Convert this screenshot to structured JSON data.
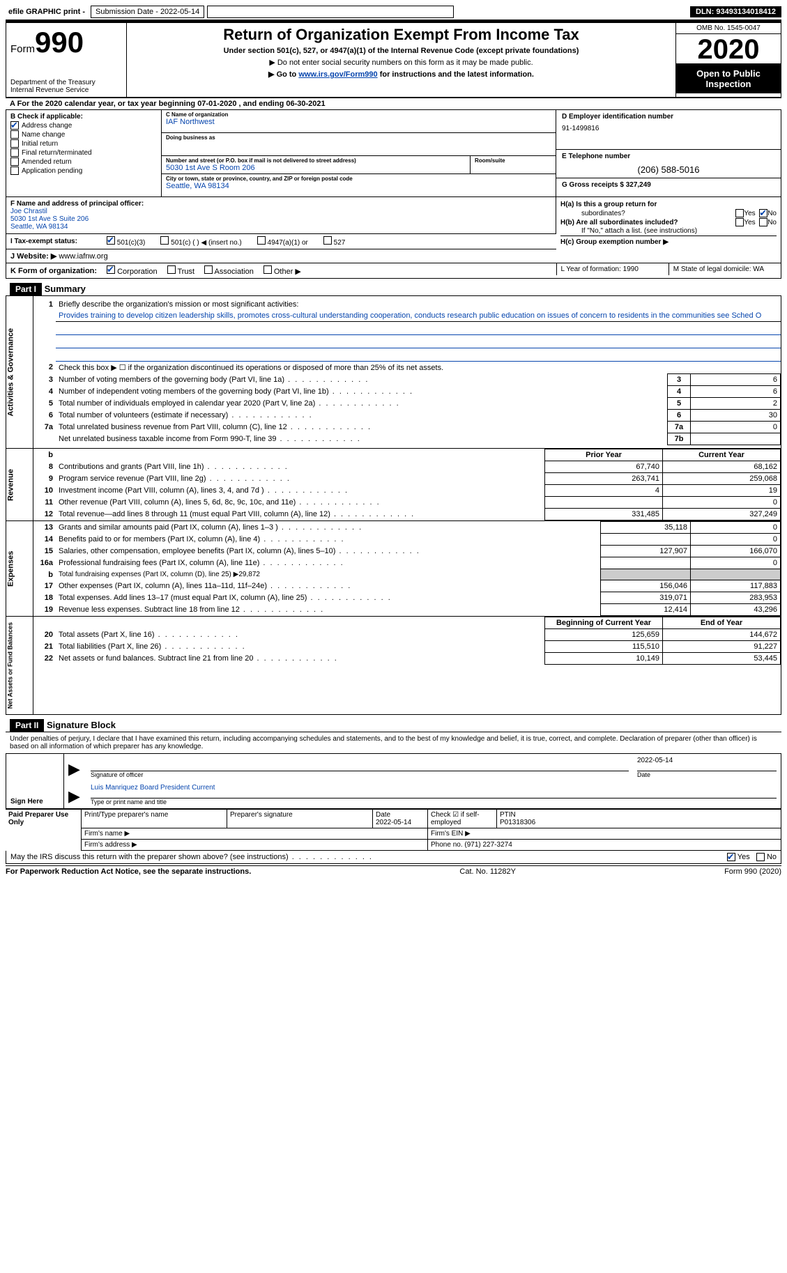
{
  "topbar": {
    "efile": "efile GRAPHIC print -",
    "submission_label": "Submission Date - 2022-05-14",
    "dln": "DLN: 93493134018412"
  },
  "header": {
    "form_word": "Form",
    "form_num": "990",
    "dept": "Department of the Treasury\nInternal Revenue Service",
    "title": "Return of Organization Exempt From Income Tax",
    "sub": "Under section 501(c), 527, or 4947(a)(1) of the Internal Revenue Code (except private foundations)",
    "line2": "▶ Do not enter social security numbers on this form as it may be made public.",
    "line3_pre": "▶ Go to ",
    "line3_link": "www.irs.gov/Form990",
    "line3_post": " for instructions and the latest information.",
    "omb": "OMB No. 1545-0047",
    "year": "2020",
    "open_public": "Open to Public Inspection"
  },
  "a_line": "A For the 2020 calendar year, or tax year beginning 07-01-2020   , and ending 06-30-2021",
  "col_b": {
    "title": "B Check if applicable:",
    "items": [
      "Address change",
      "Name change",
      "Initial return",
      "Final return/terminated",
      "Amended return",
      "Application pending"
    ],
    "checked_idx": 0
  },
  "col_c": {
    "name_lbl": "C Name of organization",
    "name": "IAF Northwest",
    "dba_lbl": "Doing business as",
    "addr_lbl": "Number and street (or P.O. box if mail is not delivered to street address)",
    "addr": "5030 1st Ave S Room 206",
    "room_lbl": "Room/suite",
    "city_lbl": "City or town, state or province, country, and ZIP or foreign postal code",
    "city": "Seattle, WA  98134"
  },
  "col_d": {
    "ein_lbl": "D Employer identification number",
    "ein": "91-1499816",
    "tel_lbl": "E Telephone number",
    "tel": "(206) 588-5016",
    "gross_lbl": "G Gross receipts $ 327,249"
  },
  "f": {
    "lbl": "F Name and address of principal officer:",
    "name": "Joe Chrastil",
    "addr1": "5030 1st Ave S Suite 206",
    "addr2": "Seattle, WA  98134"
  },
  "h": {
    "a_lbl": "H(a)  Is this a group return for",
    "a_sub": "subordinates?",
    "b_lbl": "H(b)  Are all subordinates included?",
    "b_note": "If \"No,\" attach a list. (see instructions)",
    "c_lbl": "H(c)  Group exemption number ▶",
    "yes": "Yes",
    "no": "No"
  },
  "i": {
    "lbl": "I    Tax-exempt status:",
    "opts": [
      "501(c)(3)",
      "501(c) (  ) ◀ (insert no.)",
      "4947(a)(1) or",
      "527"
    ]
  },
  "j": {
    "lbl": "J   Website: ▶",
    "val": "  www.iafnw.org"
  },
  "k": {
    "lbl": "K Form of organization:",
    "opts": [
      "Corporation",
      "Trust",
      "Association",
      "Other ▶"
    ]
  },
  "l": "L Year of formation: 1990",
  "m": "M State of legal domicile: WA",
  "part1": {
    "hdr": "Part I",
    "title": "Summary",
    "q1_lbl": "1",
    "q1": "Briefly describe the organization's mission or most significant activities:",
    "mission": "Provides training to develop citizen leadership skills, promotes cross-cultural understanding cooperation, conducts research public education on issues of concern to residents in the communities see Sched O"
  },
  "side": {
    "gov": "Activities & Governance",
    "rev": "Revenue",
    "exp": "Expenses",
    "net": "Net Assets or Fund Balances"
  },
  "gov_lines": [
    {
      "n": "2",
      "d": "Check this box ▶ ☐  if the organization discontinued its operations or disposed of more than 25% of its net assets."
    },
    {
      "n": "3",
      "d": "Number of voting members of the governing body (Part VI, line 1a)",
      "box": "3",
      "v": "6"
    },
    {
      "n": "4",
      "d": "Number of independent voting members of the governing body (Part VI, line 1b)",
      "box": "4",
      "v": "6"
    },
    {
      "n": "5",
      "d": "Total number of individuals employed in calendar year 2020 (Part V, line 2a)",
      "box": "5",
      "v": "2"
    },
    {
      "n": "6",
      "d": "Total number of volunteers (estimate if necessary)",
      "box": "6",
      "v": "30"
    },
    {
      "n": "7a",
      "d": "Total unrelated business revenue from Part VIII, column (C), line 12",
      "box": "7a",
      "v": "0"
    },
    {
      "n": "",
      "d": "Net unrelated business taxable income from Form 990-T, line 39",
      "box": "7b",
      "v": ""
    }
  ],
  "col_headers": {
    "prior": "Prior Year",
    "current": "Current Year",
    "begin": "Beginning of Current Year",
    "end": "End of Year"
  },
  "rev_lines": [
    {
      "n": "8",
      "d": "Contributions and grants (Part VIII, line 1h)",
      "p": "67,740",
      "c": "68,162"
    },
    {
      "n": "9",
      "d": "Program service revenue (Part VIII, line 2g)",
      "p": "263,741",
      "c": "259,068"
    },
    {
      "n": "10",
      "d": "Investment income (Part VIII, column (A), lines 3, 4, and 7d )",
      "p": "4",
      "c": "19"
    },
    {
      "n": "11",
      "d": "Other revenue (Part VIII, column (A), lines 5, 6d, 8c, 9c, 10c, and 11e)",
      "p": "",
      "c": "0"
    },
    {
      "n": "12",
      "d": "Total revenue—add lines 8 through 11 (must equal Part VIII, column (A), line 12)",
      "p": "331,485",
      "c": "327,249"
    }
  ],
  "exp_lines": [
    {
      "n": "13",
      "d": "Grants and similar amounts paid (Part IX, column (A), lines 1–3 )",
      "p": "35,118",
      "c": "0"
    },
    {
      "n": "14",
      "d": "Benefits paid to or for members (Part IX, column (A), line 4)",
      "p": "",
      "c": "0"
    },
    {
      "n": "15",
      "d": "Salaries, other compensation, employee benefits (Part IX, column (A), lines 5–10)",
      "p": "127,907",
      "c": "166,070"
    },
    {
      "n": "16a",
      "d": "Professional fundraising fees (Part IX, column (A), line 11e)",
      "p": "",
      "c": "0"
    },
    {
      "n": "b",
      "d": "Total fundraising expenses (Part IX, column (D), line 25) ▶29,872",
      "grey": true
    },
    {
      "n": "17",
      "d": "Other expenses (Part IX, column (A), lines 11a–11d, 11f–24e)",
      "p": "156,046",
      "c": "117,883"
    },
    {
      "n": "18",
      "d": "Total expenses. Add lines 13–17 (must equal Part IX, column (A), line 25)",
      "p": "319,071",
      "c": "283,953"
    },
    {
      "n": "19",
      "d": "Revenue less expenses. Subtract line 18 from line 12",
      "p": "12,414",
      "c": "43,296"
    }
  ],
  "net_lines": [
    {
      "n": "20",
      "d": "Total assets (Part X, line 16)",
      "p": "125,659",
      "c": "144,672"
    },
    {
      "n": "21",
      "d": "Total liabilities (Part X, line 26)",
      "p": "115,510",
      "c": "91,227"
    },
    {
      "n": "22",
      "d": "Net assets or fund balances. Subtract line 21 from line 20",
      "p": "10,149",
      "c": "53,445"
    }
  ],
  "part2": {
    "hdr": "Part II",
    "title": "Signature Block",
    "declaration": "Under penalties of perjury, I declare that I have examined this return, including accompanying schedules and statements, and to the best of my knowledge and belief, it is true, correct, and complete. Declaration of preparer (other than officer) is based on all information of which preparer has any knowledge."
  },
  "sign": {
    "here": "Sign Here",
    "sig_lbl": "Signature of officer",
    "date_lbl": "Date",
    "date": "2022-05-14",
    "name": "Luis Manriquez Board President Current",
    "type_lbl": "Type or print name and title"
  },
  "paid": {
    "title": "Paid Preparer Use Only",
    "row1": [
      "Print/Type preparer's name",
      "Preparer's signature",
      "Date\n2022-05-14",
      "Check ☑ if self-employed",
      "PTIN\nP01318306"
    ],
    "firm_name": "Firm's name   ▶",
    "firm_ein": "Firm's EIN ▶",
    "firm_addr": "Firm's address ▶",
    "phone": "Phone no. (971) 227-3274"
  },
  "discuss": {
    "q": "May the IRS discuss this return with the preparer shown above? (see instructions)",
    "yes": "Yes",
    "no": "No"
  },
  "footer": {
    "left": "For Paperwork Reduction Act Notice, see the separate instructions.",
    "mid": "Cat. No. 11282Y",
    "right": "Form 990 (2020)"
  }
}
